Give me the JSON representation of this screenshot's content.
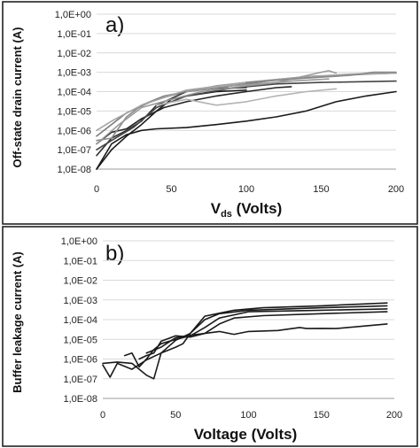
{
  "chart_data": [
    {
      "panel_label": "a)",
      "type": "line",
      "ylabel": "Off-state drain current (A)",
      "xlabel_main": "V",
      "xlabel_sub": "ds",
      "xlabel_rest": " (Volts)",
      "xlim": [
        0,
        200
      ],
      "ylim_exponent": [
        -8,
        0
      ],
      "yscale": "log",
      "grid": "horizontal",
      "x_ticks": [
        "0",
        "50",
        "100",
        "150",
        "200"
      ],
      "y_ticks": [
        "1,0E+00",
        "1,0E-01",
        "1,0E-02",
        "1,0E-03",
        "1,0E-04",
        "1,0E-05",
        "1,0E-06",
        "1,0E-07",
        "1,0E-08"
      ],
      "series": [
        {
          "color": "#1a1a1a",
          "points": [
            [
              0,
              1e-08
            ],
            [
              10,
              2e-07
            ],
            [
              20,
              6e-07
            ],
            [
              30,
              1e-06
            ],
            [
              40,
              1.2e-06
            ],
            [
              60,
              1.4e-06
            ],
            [
              80,
              2e-06
            ],
            [
              100,
              3e-06
            ],
            [
              120,
              5e-06
            ],
            [
              140,
              1e-05
            ],
            [
              160,
              3e-05
            ],
            [
              180,
              6e-05
            ],
            [
              200,
              0.0001
            ]
          ]
        },
        {
          "color": "#1a1a1a",
          "points": [
            [
              0,
              1e-08
            ],
            [
              10,
              1e-07
            ],
            [
              20,
              5e-07
            ],
            [
              30,
              2e-06
            ],
            [
              40,
              1e-05
            ],
            [
              50,
              4e-05
            ],
            [
              60,
              6e-05
            ],
            [
              80,
              0.0001
            ],
            [
              100,
              0.00012
            ]
          ]
        },
        {
          "color": "#333333",
          "points": [
            [
              0,
              5e-08
            ],
            [
              10,
              4e-07
            ],
            [
              20,
              1e-06
            ],
            [
              30,
              3e-06
            ],
            [
              40,
              2e-05
            ],
            [
              60,
              0.0001
            ],
            [
              80,
              0.00015
            ],
            [
              100,
              0.00016
            ]
          ]
        },
        {
          "color": "#222222",
          "points": [
            [
              0,
              2e-07
            ],
            [
              10,
              8e-07
            ],
            [
              20,
              1.2e-06
            ],
            [
              30,
              4e-06
            ],
            [
              45,
              1.5e-05
            ],
            [
              60,
              3e-05
            ],
            [
              80,
              6e-05
            ],
            [
              100,
              0.0001
            ],
            [
              120,
              0.00016
            ],
            [
              130,
              0.00018
            ]
          ]
        },
        {
          "color": "#444444",
          "points": [
            [
              0,
              1e-07
            ],
            [
              10,
              3e-07
            ],
            [
              25,
              1.5e-06
            ],
            [
              40,
              1.5e-05
            ],
            [
              60,
              6e-05
            ],
            [
              90,
              0.00015
            ],
            [
              120,
              0.00025
            ],
            [
              150,
              0.0003
            ],
            [
              200,
              0.00035
            ]
          ]
        },
        {
          "color": "#8c8c8c",
          "points": [
            [
              0,
              3e-07
            ],
            [
              10,
              4e-07
            ],
            [
              20,
              5e-06
            ],
            [
              30,
              2e-05
            ],
            [
              45,
              6e-05
            ],
            [
              60,
              0.0001
            ],
            [
              80,
              0.0002
            ],
            [
              100,
              0.0003
            ],
            [
              140,
              0.0006
            ],
            [
              150,
              0.00065
            ]
          ]
        },
        {
          "color": "#999999",
          "points": [
            [
              0,
              2e-07
            ],
            [
              15,
              2e-06
            ],
            [
              30,
              1.5e-05
            ],
            [
              50,
              4e-05
            ],
            [
              70,
              0.0001
            ],
            [
              100,
              0.0002
            ],
            [
              130,
              0.00035
            ],
            [
              155,
              0.00045
            ]
          ]
        },
        {
          "color": "#7a7a7a",
          "points": [
            [
              0,
              5e-07
            ],
            [
              20,
              8e-06
            ],
            [
              40,
              4e-05
            ],
            [
              60,
              0.0001
            ],
            [
              90,
              0.0002
            ],
            [
              120,
              0.0004
            ],
            [
              150,
              0.0006
            ],
            [
              180,
              0.0008
            ],
            [
              200,
              0.0009
            ]
          ]
        },
        {
          "color": "#a6a6a6",
          "points": [
            [
              0,
              1e-06
            ],
            [
              10,
              3e-06
            ],
            [
              30,
              2e-05
            ],
            [
              60,
              0.00012
            ],
            [
              100,
              0.0003
            ],
            [
              140,
              0.0006
            ],
            [
              170,
              0.0008
            ],
            [
              200,
              0.0009
            ]
          ]
        },
        {
          "color": "#b3b3b3",
          "points": [
            [
              40,
              2e-05
            ],
            [
              60,
              4e-05
            ],
            [
              80,
              2e-05
            ],
            [
              100,
              3e-05
            ],
            [
              120,
              6e-05
            ],
            [
              140,
              0.0001
            ],
            [
              160,
              0.00014
            ]
          ]
        },
        {
          "color": "#9a9a9a",
          "points": [
            [
              60,
              0.0001
            ],
            [
              90,
              0.0002
            ],
            [
              120,
              0.0003
            ],
            [
              150,
              0.001
            ],
            [
              155,
              0.0012
            ],
            [
              160,
              0.0009
            ]
          ]
        },
        {
          "color": "#888888",
          "points": [
            [
              100,
              0.0003
            ],
            [
              140,
              0.0005
            ],
            [
              170,
              0.0007
            ],
            [
              185,
              0.001
            ],
            [
              200,
              0.001
            ]
          ]
        }
      ]
    },
    {
      "panel_label": "b)",
      "type": "line",
      "ylabel": "Buffer leakage current (A)",
      "xlabel": "Voltage (Volts)",
      "xlim": [
        0,
        200
      ],
      "ylim_exponent": [
        -8,
        0
      ],
      "yscale": "log",
      "grid": "horizontal",
      "x_ticks": [
        "0",
        "50",
        "100",
        "150",
        "200"
      ],
      "y_ticks": [
        "1,0E+00",
        "1,0E-01",
        "1,0E-02",
        "1,0E-03",
        "1,0E-04",
        "1,0E-05",
        "1,0E-06",
        "1,0E-07",
        "1,0E-08"
      ],
      "series": [
        {
          "color": "#1a1a1a",
          "points": [
            [
              0,
              5e-07
            ],
            [
              5,
              1.2e-07
            ],
            [
              10,
              6e-07
            ],
            [
              20,
              3e-07
            ],
            [
              30,
              9e-07
            ],
            [
              40,
              2e-06
            ],
            [
              50,
              4e-06
            ],
            [
              55,
              6e-06
            ],
            [
              60,
              2e-05
            ],
            [
              70,
              0.00015
            ],
            [
              90,
              0.0003
            ],
            [
              110,
              0.0004
            ],
            [
              150,
              0.0005
            ],
            [
              195,
              0.0007
            ]
          ]
        },
        {
          "color": "#1a1a1a",
          "points": [
            [
              0,
              6e-07
            ],
            [
              10,
              7e-07
            ],
            [
              20,
              6e-07
            ],
            [
              30,
              1.5e-07
            ],
            [
              35,
              1e-07
            ],
            [
              40,
              2e-06
            ],
            [
              50,
              9e-06
            ],
            [
              60,
              2e-05
            ],
            [
              70,
              0.0001
            ],
            [
              80,
              0.0002
            ],
            [
              100,
              0.0003
            ],
            [
              150,
              0.0004
            ],
            [
              195,
              0.0005
            ]
          ]
        },
        {
          "color": "#1a1a1a",
          "points": [
            [
              15,
              1.5e-06
            ],
            [
              20,
              2e-06
            ],
            [
              25,
              4e-07
            ],
            [
              30,
              1e-06
            ],
            [
              35,
              3e-06
            ],
            [
              40,
              6e-06
            ],
            [
              50,
              1e-05
            ],
            [
              60,
              1.5e-05
            ],
            [
              70,
              4e-05
            ],
            [
              80,
              0.00012
            ],
            [
              100,
              0.00025
            ],
            [
              150,
              0.0003
            ],
            [
              195,
              0.00035
            ]
          ]
        },
        {
          "color": "#1a1a1a",
          "points": [
            [
              25,
              1e-06
            ],
            [
              30,
              1.5e-06
            ],
            [
              35,
              2e-06
            ],
            [
              40,
              8e-06
            ],
            [
              50,
              1.5e-05
            ],
            [
              60,
              1.3e-05
            ],
            [
              70,
              2e-05
            ],
            [
              80,
              6e-05
            ],
            [
              90,
              0.00012
            ],
            [
              110,
              0.00016
            ],
            [
              150,
              0.0002
            ],
            [
              195,
              0.00025
            ]
          ]
        },
        {
          "color": "#1a1a1a",
          "points": [
            [
              30,
              2e-06
            ],
            [
              40,
              4e-06
            ],
            [
              50,
              1.2e-05
            ],
            [
              60,
              1.6e-05
            ],
            [
              70,
              2e-05
            ],
            [
              80,
              2.5e-05
            ],
            [
              90,
              1.8e-05
            ],
            [
              100,
              2.5e-05
            ],
            [
              120,
              2.8e-05
            ],
            [
              135,
              4e-05
            ],
            [
              140,
              3.5e-05
            ],
            [
              150,
              3.6e-05
            ],
            [
              160,
              3.5e-05
            ],
            [
              195,
              6e-05
            ]
          ]
        }
      ]
    }
  ]
}
